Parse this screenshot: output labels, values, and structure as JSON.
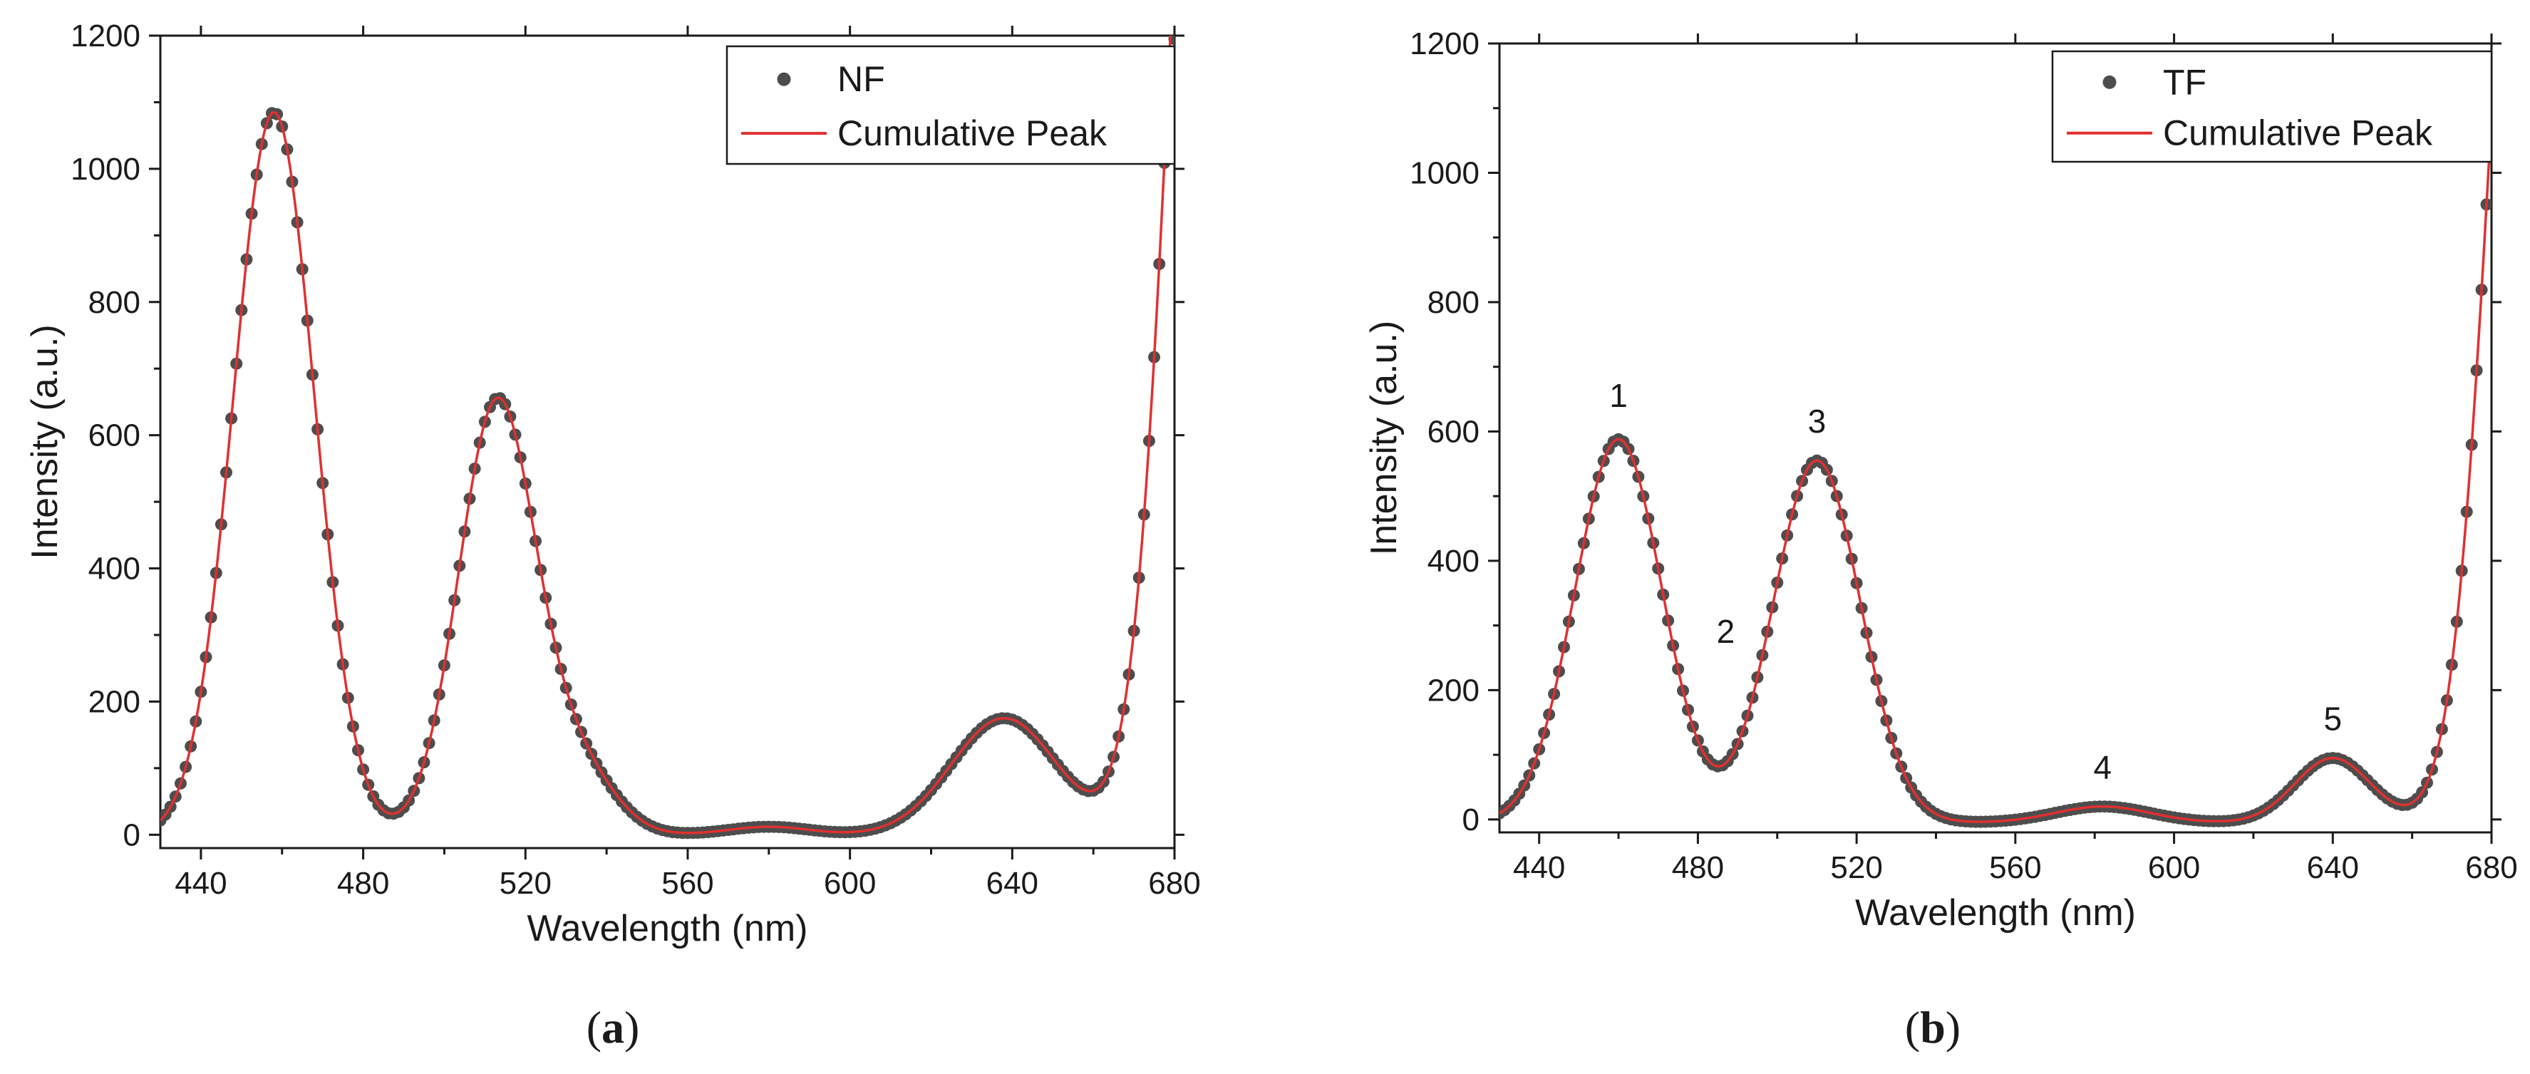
{
  "colors": {
    "points": "#4d4d4d",
    "fit": "#e03030",
    "axis": "#1a1a1a"
  },
  "chart_data": [
    {
      "type": "scatter",
      "panel_label": "(a)",
      "panel_letter": "a",
      "xlabel": "Wavelength (nm)",
      "ylabel": "Intensity (a.u.)",
      "xlim": [
        430,
        680
      ],
      "ylim": [
        -20,
        1200
      ],
      "xticks": [
        440,
        480,
        520,
        560,
        600,
        640,
        680
      ],
      "yticks": [
        0,
        200,
        400,
        600,
        800,
        1000,
        1200
      ],
      "legend": {
        "position": "top-right",
        "entries": [
          "NF",
          "Cumulative Peak"
        ]
      },
      "series": [
        {
          "name": "NF",
          "kind": "points",
          "baseline": 0,
          "peaks": [
            {
              "center": 458,
              "amplitude": 1085,
              "sigma": 10.0
            },
            {
              "center": 513,
              "amplitude": 648,
              "sigma": 9.5
            },
            {
              "center": 533,
              "amplitude": 95,
              "sigma": 9.0
            },
            {
              "center": 580,
              "amplitude": 12,
              "sigma": 10.0
            },
            {
              "center": 638,
              "amplitude": 175,
              "sigma": 13.0
            },
            {
              "center": 690,
              "amplitude": 2200,
              "sigma": 10.0
            }
          ]
        },
        {
          "name": "Cumulative Peak",
          "kind": "line",
          "baseline": 0,
          "peaks": [
            {
              "center": 458,
              "amplitude": 1085,
              "sigma": 10.0
            },
            {
              "center": 513,
              "amplitude": 648,
              "sigma": 9.5
            },
            {
              "center": 533,
              "amplitude": 95,
              "sigma": 9.0
            },
            {
              "center": 580,
              "amplitude": 12,
              "sigma": 10.0
            },
            {
              "center": 638,
              "amplitude": 175,
              "sigma": 13.0
            },
            {
              "center": 690,
              "amplitude": 2200,
              "sigma": 10.0
            }
          ]
        }
      ],
      "annotations": []
    },
    {
      "type": "scatter",
      "panel_label": "(b)",
      "panel_letter": "b",
      "xlabel": "Wavelength (nm)",
      "ylabel": "Intensity (a.u.)",
      "xlim": [
        430,
        680
      ],
      "ylim": [
        -20,
        1200
      ],
      "xticks": [
        440,
        480,
        520,
        560,
        600,
        640,
        680
      ],
      "yticks": [
        0,
        200,
        400,
        600,
        800,
        1000,
        1200
      ],
      "legend": {
        "position": "top-right",
        "entries": [
          "TF",
          "Cumulative Peak"
        ]
      },
      "series": [
        {
          "name": "TF",
          "kind": "points",
          "baseline": -5,
          "peaks": [
            {
              "center": 460,
              "amplitude": 593,
              "sigma": 11.0
            },
            {
              "center": 510,
              "amplitude": 560,
              "sigma": 11.0
            },
            {
              "center": 582,
              "amplitude": 25,
              "sigma": 12.0
            },
            {
              "center": 640,
              "amplitude": 100,
              "sigma": 9.5
            },
            {
              "center": 690,
              "amplitude": 1800,
              "sigma": 10.0
            }
          ]
        },
        {
          "name": "Cumulative Peak",
          "kind": "line",
          "baseline": -5,
          "peaks": [
            {
              "center": 460,
              "amplitude": 593,
              "sigma": 11.0
            },
            {
              "center": 510,
              "amplitude": 560,
              "sigma": 11.0
            },
            {
              "center": 582,
              "amplitude": 25,
              "sigma": 12.0
            },
            {
              "center": 640,
              "amplitude": 100,
              "sigma": 9.5
            },
            {
              "center": 690,
              "amplitude": 1800,
              "sigma": 10.0
            }
          ]
        }
      ],
      "annotations": [
        {
          "label": "1",
          "x": 460,
          "y": 605
        },
        {
          "label": "2",
          "x": 487,
          "y": 240
        },
        {
          "label": "3",
          "x": 510,
          "y": 565
        },
        {
          "label": "4",
          "x": 582,
          "y": 30
        },
        {
          "label": "5",
          "x": 640,
          "y": 105
        }
      ]
    }
  ]
}
